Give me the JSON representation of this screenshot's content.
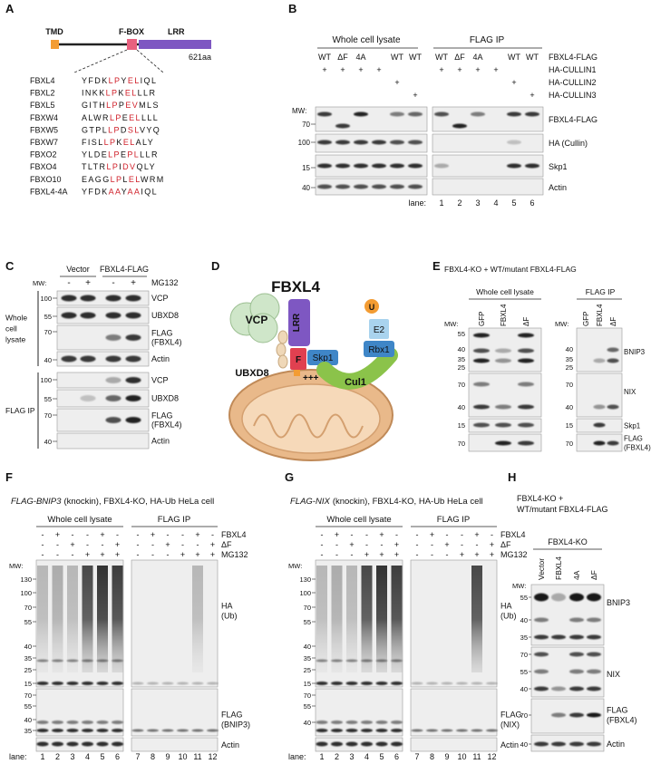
{
  "panel_a": {
    "label": "A",
    "domains": [
      "TMD",
      "F-BOX",
      "LRR"
    ],
    "length": "621aa",
    "rows": [
      {
        "name": "FBXL4",
        "sequence": [
          "YFDK",
          "LP",
          "Y",
          "EL",
          "IQL"
        ]
      },
      {
        "name": "FBXL2",
        "sequence": [
          "INKK",
          "LP",
          "K",
          "EL",
          "LLR"
        ]
      },
      {
        "name": "FBXL5",
        "sequence": [
          "GITH",
          "LP",
          "P",
          "EV",
          "MLS"
        ]
      },
      {
        "name": "FBXW4",
        "sequence": [
          "ALWR",
          "LP",
          "E",
          "EL",
          "LLL"
        ]
      },
      {
        "name": "FBXW5",
        "sequence": [
          "GTPL",
          "LP",
          "D",
          "SL",
          "VYQ"
        ]
      },
      {
        "name": "FBXW7",
        "sequence": [
          "FISL",
          "LP",
          "K",
          "EL",
          "ALY"
        ]
      },
      {
        "name": "FBXO2",
        "sequence": [
          "YLDE",
          "LP",
          "E",
          "PL",
          "LLR"
        ]
      },
      {
        "name": "FBXO4",
        "sequence": [
          "TLTR",
          "LP",
          "I",
          "DV",
          "QLY"
        ]
      },
      {
        "name": "FBXO10",
        "sequence": [
          "EAGG",
          "LP",
          "L",
          "EL",
          "WRM"
        ]
      },
      {
        "name": "FBXL4-4A",
        "sequence": [
          "YFDK",
          "AA",
          "Y",
          "AA",
          "IQL"
        ]
      }
    ]
  },
  "panel_b": {
    "label": "B",
    "groups": [
      "Whole cell lysate",
      "FLAG IP"
    ],
    "conditions": [
      {
        "name": "FBXL4-FLAG",
        "lanes": [
          "WT",
          "ΔF",
          "4A",
          null,
          "WT",
          "WT"
        ]
      },
      {
        "name": "HA-CULLIN1",
        "lanes": [
          "+",
          "+",
          "+",
          "+",
          null,
          null
        ]
      },
      {
        "name": "HA-CULLIN2",
        "lanes": [
          null,
          null,
          null,
          null,
          "+",
          null
        ]
      },
      {
        "name": "HA-CULLIN3",
        "lanes": [
          null,
          null,
          null,
          null,
          null,
          "+"
        ]
      }
    ],
    "mw_label": "MW:",
    "blots": [
      {
        "label": "FBXL4-FLAG",
        "markers": [
          70
        ]
      },
      {
        "label": "HA (Cullin)",
        "markers": [
          100
        ]
      },
      {
        "label": "Skp1",
        "markers": [
          15
        ]
      },
      {
        "label": "Actin",
        "markers": [
          40
        ]
      }
    ],
    "lane_label": "lane:",
    "lane_numbers": [
      1,
      2,
      3,
      4,
      5,
      6
    ]
  },
  "panel_c": {
    "label": "C",
    "groups": [
      "Vector",
      "FBXL4-FLAG"
    ],
    "treatment": {
      "name": "MG132",
      "lanes": [
        "-",
        "+",
        "-",
        "+"
      ]
    },
    "mw_label": "MW:",
    "sections": [
      {
        "name": [
          "Whole",
          "cell",
          "lysate"
        ],
        "blots": [
          {
            "label": [
              "VCP"
            ],
            "markers": [
              100
            ]
          },
          {
            "label": [
              "UBXD8"
            ],
            "markers": [
              55
            ]
          },
          {
            "label": [
              "FLAG",
              "(FBXL4)"
            ],
            "markers": [
              70
            ]
          },
          {
            "label": [
              "Actin"
            ],
            "markers": [
              40
            ]
          }
        ]
      },
      {
        "name": [
          "FLAG IP"
        ],
        "blots": [
          {
            "label": [
              "VCP"
            ],
            "markers": [
              100
            ]
          },
          {
            "label": [
              "UBXD8"
            ],
            "markers": [
              55
            ]
          },
          {
            "label": [
              "FLAG",
              "(FBXL4)"
            ],
            "markers": [
              70
            ]
          },
          {
            "label": [
              "Actin"
            ],
            "markers": [
              40
            ]
          }
        ]
      }
    ]
  },
  "panel_d": {
    "label": "D",
    "title": "FBXL4",
    "components": {
      "lrr": "LRR",
      "vcp": "VCP",
      "skp1": "Skp1",
      "e2": "E2",
      "ubiquitin": "U",
      "rbx1": "Rbx1",
      "fbox": "F",
      "ubxd8": "UBXD8",
      "cul1": "Cul1",
      "charge": "+++"
    }
  },
  "panel_e": {
    "label": "E",
    "title": "FBXL4-KO + WT/mutant FBXL4-FLAG",
    "groups": [
      "Whole cell lysate",
      "FLAG IP"
    ],
    "lanes": [
      "GFP",
      "FBXL4",
      "ΔF"
    ],
    "mw_label": "MW:",
    "blots": [
      {
        "label": [
          "BNIP3"
        ],
        "markers_left": [
          55,
          40,
          35,
          25
        ],
        "markers_right": [
          40,
          35,
          25
        ]
      },
      {
        "label": [
          "NIX"
        ],
        "markers_left": [
          70,
          40
        ],
        "markers_right": [
          70,
          40
        ]
      },
      {
        "label": [
          "Skp1"
        ],
        "markers_left": [
          15
        ],
        "markers_right": [
          15
        ]
      },
      {
        "label": [
          "FLAG",
          "(FBXL4)"
        ],
        "markers_left": [
          70
        ],
        "markers_right": [
          70
        ]
      }
    ]
  },
  "panel_f": {
    "label": "F",
    "title": [
      "FLAG-BNIP3",
      "(knockin), FBXL4-KO, HA-Ub HeLa cell"
    ],
    "groups": [
      "Whole cell lysate",
      "FLAG IP"
    ],
    "conditions": [
      {
        "name": "FBXL4",
        "lanes": [
          "-",
          "+",
          "-",
          "-",
          "+",
          "-"
        ]
      },
      {
        "name": "ΔF",
        "lanes": [
          "-",
          "-",
          "+",
          "-",
          "-",
          "+"
        ]
      },
      {
        "name": "MG132",
        "lanes": [
          "-",
          "-",
          "-",
          "+",
          "+",
          "+"
        ]
      }
    ],
    "mw_label": "MW:",
    "blots": [
      {
        "label": [
          "HA",
          "(Ub)"
        ],
        "markers": [
          130,
          100,
          70,
          55,
          40,
          35,
          25,
          15
        ]
      },
      {
        "label": [
          "FLAG",
          "(BNIP3)"
        ],
        "markers": [
          70,
          55,
          40,
          35
        ]
      },
      {
        "label": [
          "Actin"
        ],
        "markers": []
      }
    ],
    "lane_label": "lane:",
    "lane_numbers": [
      1,
      2,
      3,
      4,
      5,
      6,
      7,
      8,
      9,
      10,
      11,
      12
    ]
  },
  "panel_g": {
    "label": "G",
    "title": [
      "FLAG-NIX",
      "(knockin), FBXL4-KO, HA-Ub HeLa cell"
    ],
    "groups": [
      "Whole cell lysate",
      "FLAG IP"
    ],
    "conditions": [
      {
        "name": "FBXL4",
        "lanes": [
          "-",
          "+",
          "-",
          "-",
          "+",
          "-"
        ]
      },
      {
        "name": "ΔF",
        "lanes": [
          "-",
          "-",
          "+",
          "-",
          "-",
          "+"
        ]
      },
      {
        "name": "MG132",
        "lanes": [
          "-",
          "-",
          "-",
          "+",
          "+",
          "+"
        ]
      }
    ],
    "mw_label": "MW:",
    "blots": [
      {
        "label": [
          "HA",
          "(Ub)"
        ],
        "markers": [
          130,
          100,
          70,
          55,
          40,
          35,
          25,
          15
        ]
      },
      {
        "label": [
          "FLAG",
          "(NIX)"
        ],
        "markers": [
          70,
          55,
          40
        ]
      },
      {
        "label": [
          "Actin"
        ],
        "markers": []
      }
    ],
    "lane_label": "lane:",
    "lane_numbers": [
      1,
      2,
      3,
      4,
      5,
      6,
      7,
      8,
      9,
      10,
      11,
      12
    ]
  },
  "panel_h": {
    "label": "H",
    "title": [
      "FBXL4-KO +",
      "WT/mutant FBXL4-FLAG"
    ],
    "group": "FBXL4-KO",
    "lanes": [
      "Vector",
      "FBXL4",
      "4A",
      "ΔF"
    ],
    "mw_label": "MW:",
    "blots": [
      {
        "label": [
          "BNIP3"
        ],
        "markers": [
          55,
          40,
          35
        ]
      },
      {
        "label": [
          "NIX"
        ],
        "markers": [
          70,
          55,
          40
        ]
      },
      {
        "label": [
          "FLAG",
          "(FBXL4)"
        ],
        "markers": [
          70
        ]
      },
      {
        "label": [
          "Actin"
        ],
        "markers": [
          40
        ]
      }
    ]
  }
}
